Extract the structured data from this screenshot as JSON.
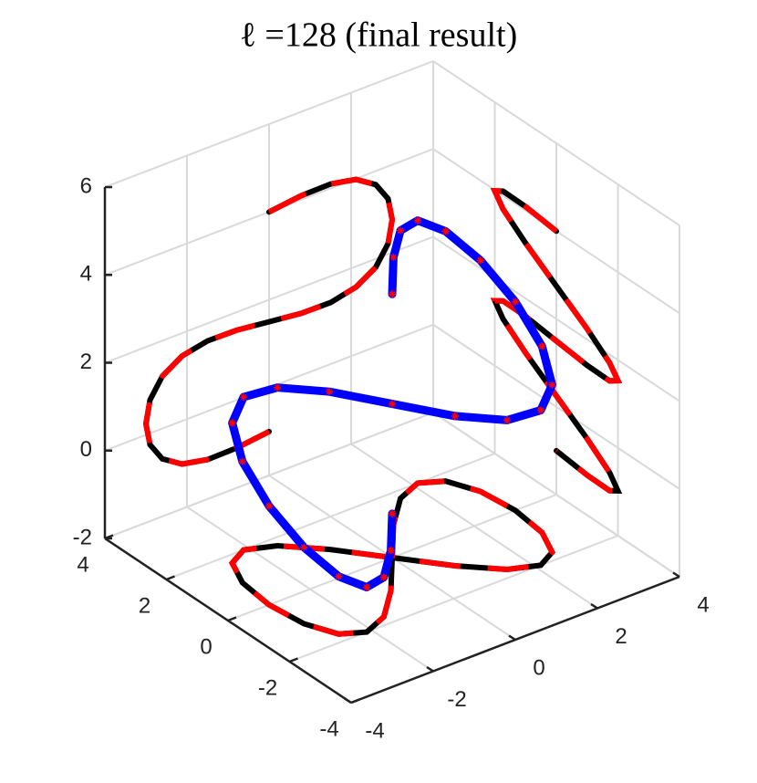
{
  "chart_data": {
    "type": "line3d",
    "title": "ℓ =128 (final result)",
    "x": [
      0,
      0.78,
      1.5,
      2.12,
      2.6,
      2.9,
      3,
      2.9,
      2.6,
      2.12,
      1.5,
      0.78,
      0,
      -0.78,
      -1.5,
      -2.12,
      -2.6,
      -2.9,
      -3,
      -2.9,
      -2.6,
      -2.12,
      -1.5,
      -0.78,
      0
    ],
    "y": [
      0,
      1,
      1.73,
      2,
      1.73,
      1,
      0,
      -1,
      -1.73,
      -2,
      -1.73,
      -1,
      0,
      1,
      1.73,
      2,
      1.73,
      1,
      0,
      -1,
      -1.73,
      -2,
      -1.73,
      -1,
      0
    ],
    "z": [
      4,
      4.09,
      4.1,
      3.98,
      3.69,
      3.26,
      2.75,
      2.24,
      1.81,
      1.53,
      1.4,
      1.41,
      1.5,
      1.59,
      1.6,
      1.48,
      1.19,
      0.76,
      0.25,
      -0.26,
      -0.69,
      -0.98,
      -1.1,
      -1.09,
      -1
    ],
    "color": "#0000ff",
    "marker_color": "#ff0000",
    "projection_colors": [
      "#000000",
      "#ff0000"
    ],
    "xlim": [
      -4,
      4
    ],
    "ylim": [
      -4,
      4
    ],
    "zlim": [
      -2,
      6
    ],
    "xticks": [
      -4,
      -2,
      0,
      2,
      4
    ],
    "yticks": [
      -4,
      -2,
      0,
      2,
      4
    ],
    "zticks": [
      -2,
      0,
      2,
      4,
      6
    ],
    "grid": true
  }
}
